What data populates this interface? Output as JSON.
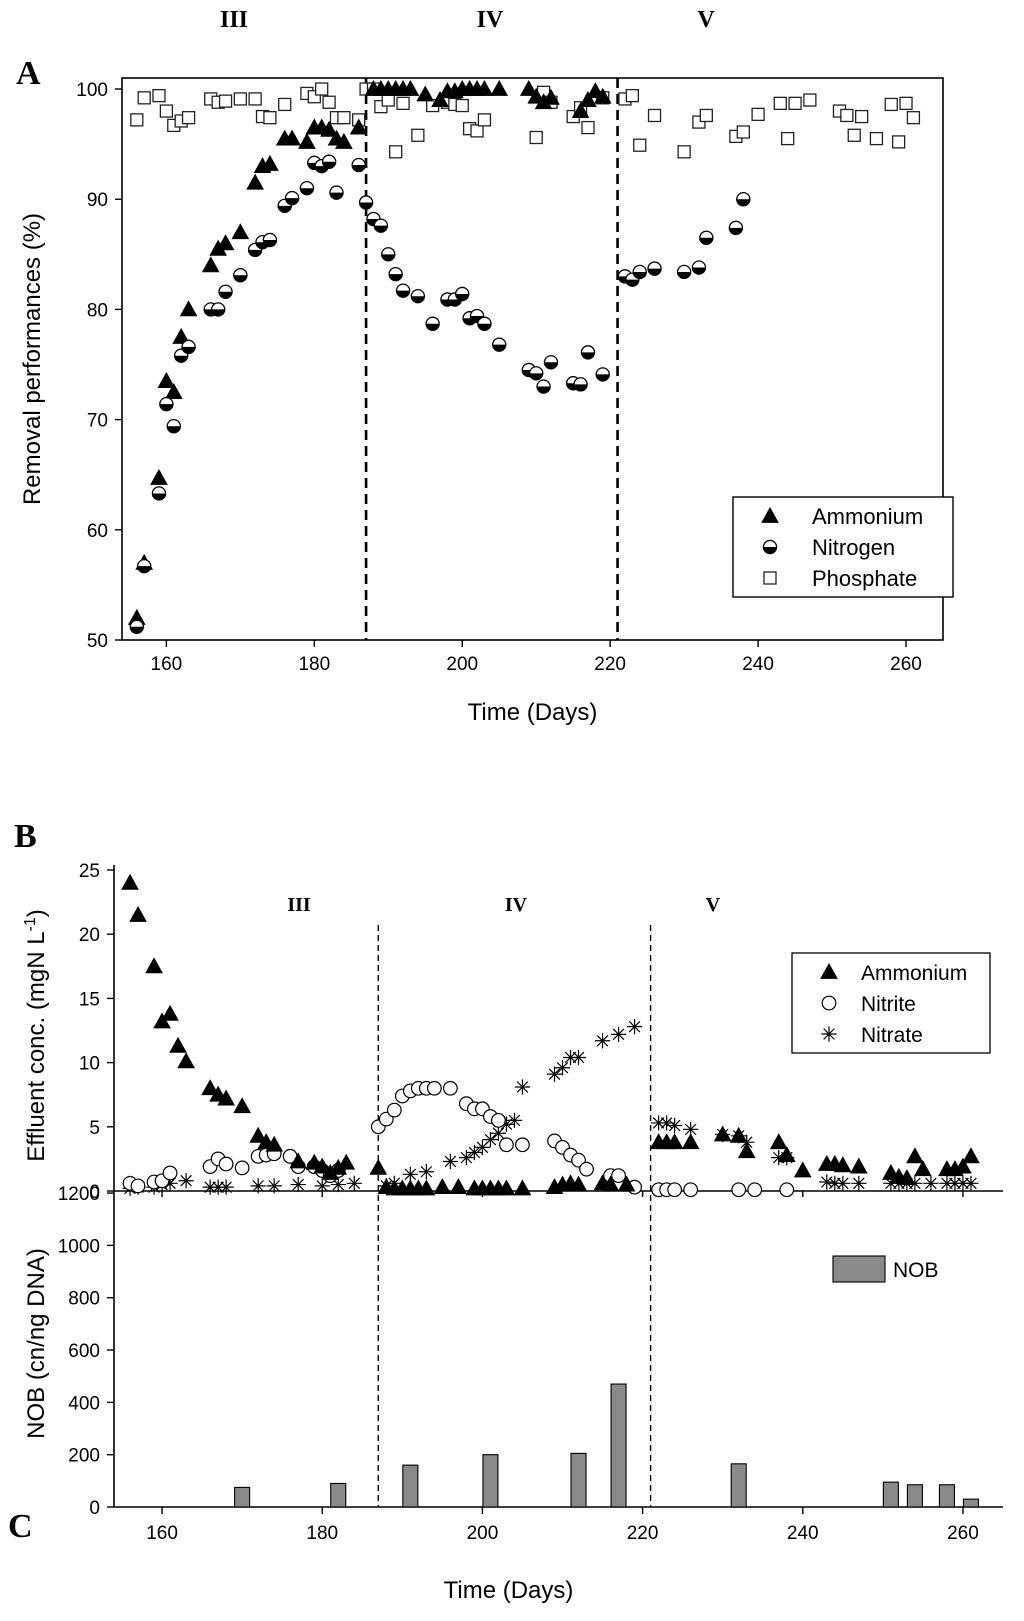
{
  "chart_data": [
    {
      "panel": "A",
      "type": "scatter",
      "phases": [
        "III",
        "IV",
        "V"
      ],
      "phase_boundaries": [
        187,
        221
      ],
      "xlabel": "Time (Days)",
      "ylabel": "Removal performances (%)",
      "xlim": [
        154,
        265
      ],
      "ylim": [
        50,
        101
      ],
      "xticks": [
        160,
        180,
        200,
        220,
        240,
        260
      ],
      "yticks": [
        50,
        60,
        70,
        80,
        90,
        100
      ],
      "legend": "bottom-right",
      "series": [
        {
          "name": "Ammonium",
          "marker": "filled-triangle",
          "x": [
            156,
            157,
            159,
            160,
            161,
            162,
            163,
            166,
            167,
            168,
            170,
            172,
            173,
            174,
            176,
            177,
            179,
            180,
            181,
            182,
            183,
            184,
            186,
            188,
            189,
            190,
            191,
            192,
            193,
            195,
            197,
            198,
            199,
            200,
            201,
            202,
            203,
            205,
            209,
            210,
            211,
            212,
            216,
            217,
            218,
            219
          ],
          "y": [
            52,
            57,
            64.7,
            73.5,
            72.5,
            77.5,
            80,
            84,
            85.5,
            86,
            87,
            91.5,
            93,
            93.2,
            95.5,
            95.5,
            95.2,
            96.5,
            96.5,
            96.3,
            95.5,
            95.2,
            96.5,
            100,
            100,
            100,
            100,
            100,
            100,
            99.5,
            99,
            99.8,
            99.8,
            100,
            100,
            100,
            100,
            100,
            100,
            99.3,
            98.8,
            99.2,
            98,
            99,
            99.8,
            99.3
          ]
        },
        {
          "name": "Nitrogen",
          "marker": "half-filled-circle",
          "x": [
            156,
            157,
            159,
            160,
            161,
            162,
            163,
            166,
            167,
            168,
            170,
            172,
            173,
            174,
            176,
            177,
            179,
            180,
            181,
            182,
            183,
            186,
            187,
            188,
            189,
            190,
            191,
            192,
            194,
            196,
            198,
            199,
            200,
            201,
            202,
            203,
            205,
            209,
            210,
            211,
            212,
            215,
            216,
            217,
            219,
            222,
            223,
            224,
            226,
            230,
            232,
            233,
            237,
            238
          ],
          "y": [
            51.2,
            56.7,
            63.3,
            71.4,
            69.4,
            75.8,
            76.6,
            80,
            80,
            81.6,
            83.1,
            85.4,
            86.1,
            86.3,
            89.4,
            90.1,
            91,
            93.3,
            93,
            93.4,
            90.6,
            93.1,
            89.7,
            88.2,
            87.6,
            85,
            83.2,
            81.7,
            81.2,
            78.7,
            80.9,
            80.9,
            81.4,
            79.2,
            79.4,
            78.7,
            76.8,
            74.5,
            74.2,
            73,
            75.2,
            73.3,
            73.2,
            76.1,
            74.1,
            83,
            82.7,
            83.4,
            83.7,
            83.4,
            83.8,
            86.5,
            87.4,
            90
          ]
        },
        {
          "name": "Phosphate",
          "marker": "open-square",
          "x": [
            156,
            157,
            159,
            160,
            161,
            162,
            163,
            166,
            167,
            168,
            170,
            172,
            173,
            174,
            176,
            179,
            180,
            181,
            182,
            183,
            184,
            186,
            187,
            188,
            189,
            190,
            191,
            192,
            194,
            196,
            198,
            199,
            200,
            201,
            202,
            203,
            210,
            211,
            212,
            215,
            216,
            217,
            219,
            222,
            223,
            224,
            226,
            230,
            232,
            233,
            237,
            238,
            240,
            243,
            244,
            245,
            247,
            251,
            252,
            253,
            254,
            256,
            258,
            259,
            260,
            261
          ],
          "y": [
            97.2,
            99.2,
            99.4,
            98,
            96.7,
            97.1,
            97.4,
            99.1,
            98.8,
            98.9,
            99.1,
            99.1,
            97.5,
            97.4,
            98.6,
            99.6,
            99.3,
            100,
            98.8,
            97.4,
            97.4,
            97.2,
            100,
            100,
            98.4,
            99,
            94.3,
            98.7,
            95.8,
            98.5,
            98.8,
            98.6,
            98.5,
            96.4,
            96.2,
            97.2,
            95.6,
            99.7,
            98.8,
            97.5,
            98.3,
            96.5,
            99.2,
            99.1,
            99.4,
            94.9,
            97.6,
            94.3,
            97,
            97.6,
            95.7,
            96.1,
            97.7,
            98.7,
            95.5,
            98.7,
            99,
            98,
            97.6,
            95.8,
            97.5,
            95.5,
            98.6,
            95.2,
            98.7,
            97.4
          ]
        }
      ]
    },
    {
      "panel": "B",
      "type": "scatter",
      "phases": [
        "III",
        "IV",
        "V"
      ],
      "phase_boundaries": [
        187,
        221
      ],
      "ylabel_main": "Effluent conc.  (mgN L",
      "ylabel_sup": "-1",
      "ylabel_end": ")",
      "ylim": [
        0,
        25
      ],
      "yticks": [
        0,
        5,
        10,
        15,
        20,
        25
      ],
      "legend": "top-right",
      "series": [
        {
          "name": "Ammonium",
          "marker": "filled-triangle",
          "x": [
            156,
            157,
            159,
            160,
            161,
            162,
            163,
            166,
            167,
            168,
            170,
            172,
            173,
            174,
            177,
            179,
            180,
            181,
            182,
            183,
            187,
            188,
            189,
            190,
            191,
            192,
            193,
            195,
            197,
            199,
            200,
            201,
            202,
            203,
            205,
            209,
            210,
            211,
            212,
            215,
            216,
            218,
            222,
            223,
            224,
            226,
            230,
            232,
            233,
            237,
            238,
            240,
            243,
            244,
            245,
            247,
            251,
            252,
            253,
            254,
            255,
            258,
            259,
            260,
            261
          ],
          "y": [
            24,
            21.5,
            17.5,
            13.2,
            13.8,
            11.3,
            10.1,
            8,
            7.5,
            7.2,
            6.6,
            4.3,
            3.8,
            3.6,
            2.3,
            2.2,
            1.9,
            1.4,
            1.8,
            2.2,
            1.8,
            0.3,
            0.2,
            0.2,
            0.2,
            0.2,
            0.2,
            0.3,
            0.3,
            0.2,
            0.2,
            0.2,
            0.2,
            0.2,
            0.2,
            0.3,
            0.5,
            0.6,
            0.5,
            0.6,
            0.5,
            0.5,
            3.8,
            3.8,
            3.8,
            3.8,
            4.4,
            4.3,
            3.1,
            3.8,
            2.8,
            1.6,
            2.1,
            2.1,
            2,
            1.9,
            1.4,
            1.1,
            1,
            2.7,
            1.7,
            1.7,
            1.7,
            1.9,
            2.7
          ]
        },
        {
          "name": "Nitrite",
          "marker": "open-circle",
          "x": [
            156,
            157,
            159,
            160,
            161,
            166,
            167,
            168,
            170,
            172,
            173,
            174,
            176,
            177,
            179,
            180,
            181,
            182,
            187,
            188,
            189,
            190,
            191,
            192,
            193,
            194,
            196,
            198,
            199,
            200,
            201,
            202,
            203,
            205,
            209,
            210,
            211,
            212,
            213,
            216,
            217,
            219,
            222,
            223,
            224,
            226,
            232,
            234,
            238
          ],
          "y": [
            0.6,
            0.4,
            0.7,
            0.8,
            1.4,
            1.9,
            2.5,
            2.1,
            1.8,
            2.7,
            2.8,
            2.9,
            2.7,
            1.9,
            1.9,
            1.6,
            1.2,
            1.6,
            5,
            5.6,
            6.3,
            7.4,
            7.8,
            8,
            8,
            8,
            8,
            6.8,
            6.4,
            6.4,
            5.8,
            5.5,
            3.6,
            3.6,
            3.9,
            3.4,
            2.8,
            2.4,
            1.7,
            1.2,
            1.2,
            0.3,
            0.1,
            0.1,
            0.1,
            0.1,
            0.1,
            0.1,
            0.1
          ]
        },
        {
          "name": "Nitrate",
          "marker": "asterisk",
          "x": [
            156,
            157,
            159,
            160,
            161,
            163,
            166,
            167,
            168,
            172,
            174,
            177,
            180,
            182,
            184,
            188,
            189,
            191,
            193,
            196,
            198,
            199,
            200,
            201,
            202,
            203,
            204,
            205,
            209,
            210,
            211,
            212,
            215,
            217,
            219,
            222,
            223,
            224,
            226,
            230,
            232,
            233,
            237,
            238,
            243,
            244,
            245,
            247,
            251,
            252,
            253,
            254,
            256,
            258,
            259,
            260,
            261
          ],
          "y": [
            0.2,
            0.3,
            0.3,
            0.5,
            0.6,
            0.8,
            0.3,
            0.3,
            0.3,
            0.4,
            0.4,
            0.5,
            0.4,
            0.5,
            0.6,
            0.4,
            0.6,
            1.3,
            1.5,
            2.3,
            2.6,
            3,
            3.4,
            4,
            4.5,
            5.2,
            5.5,
            8.1,
            9.1,
            9.6,
            10.4,
            10.4,
            11.7,
            12.2,
            12.8,
            5.3,
            5.3,
            5.1,
            4.8,
            4.4,
            4.3,
            3.8,
            2.6,
            2.6,
            0.7,
            0.6,
            0.6,
            0.6,
            0.6,
            0.6,
            0.6,
            0.6,
            0.6,
            0.6,
            0.6,
            0.6,
            0.6
          ]
        }
      ]
    },
    {
      "panel": "C",
      "type": "bar",
      "xlabel": "Time (Days)",
      "ylabel": "NOB (cn/ng DNA)",
      "xlim": [
        154,
        265
      ],
      "ylim": [
        0,
        1250
      ],
      "xticks": [
        160,
        180,
        200,
        220,
        240,
        260
      ],
      "yticks": [
        0,
        200,
        400,
        600,
        800,
        1000,
        1200
      ],
      "legend": "top-right",
      "series": [
        {
          "name": "NOB",
          "x": [
            170,
            182,
            191,
            201,
            212,
            217,
            232,
            251,
            254,
            258,
            261
          ],
          "values": [
            75,
            90,
            160,
            200,
            205,
            470,
            165,
            95,
            85,
            85,
            30
          ]
        }
      ]
    }
  ]
}
